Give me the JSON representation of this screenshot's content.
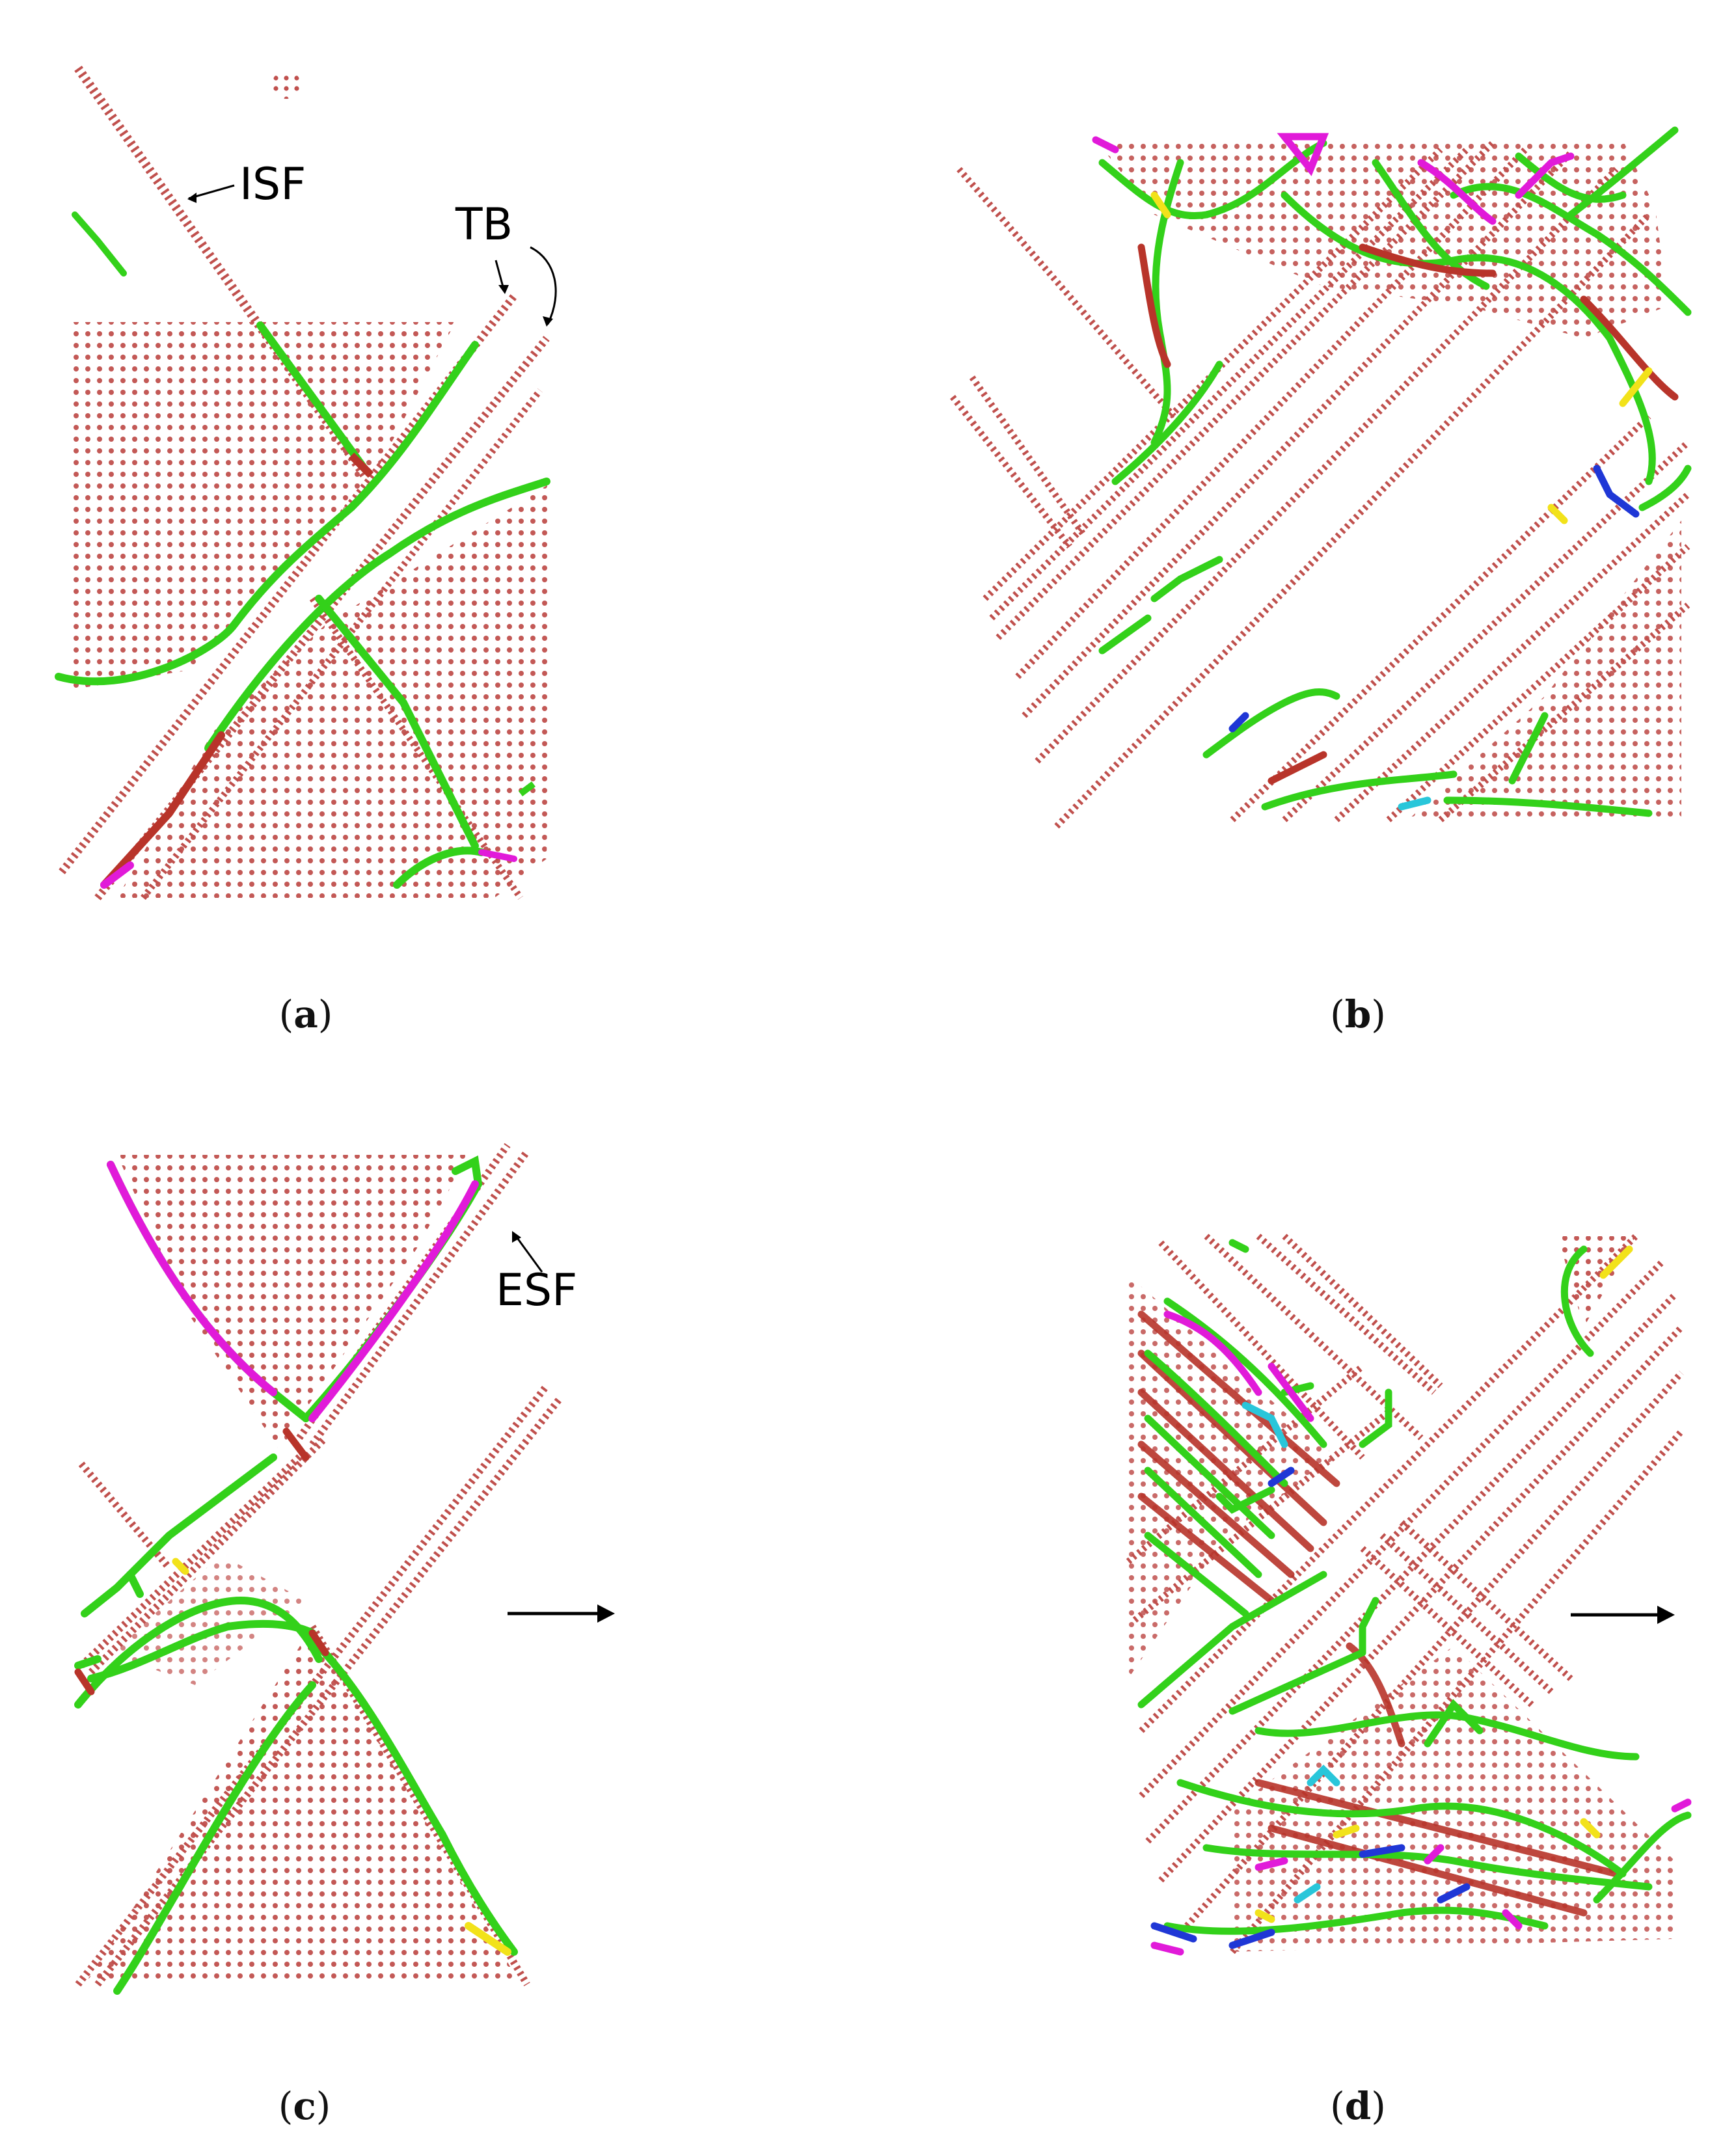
{
  "panels": [
    {
      "id": "a",
      "caption_open": "(",
      "caption_letter": "a",
      "caption_close": ")"
    },
    {
      "id": "b",
      "caption_open": "(",
      "caption_letter": "b",
      "caption_close": ")"
    },
    {
      "id": "c",
      "caption_open": "(",
      "caption_letter": "c",
      "caption_close": ")"
    },
    {
      "id": "d",
      "caption_open": "(",
      "caption_letter": "d",
      "caption_close": ")"
    }
  ],
  "annotations": {
    "isf": "ISF",
    "tb": "TB",
    "esf": "ESF"
  },
  "colors": {
    "atoms": "#c0504d",
    "dislocation_green": "#33d11a",
    "dislocation_magenta": "#e11ad9",
    "dislocation_red": "#b8342a",
    "dislocation_blue": "#1f37d6",
    "dislocation_yellow": "#f2e21a",
    "dislocation_cyan": "#29c6da"
  }
}
